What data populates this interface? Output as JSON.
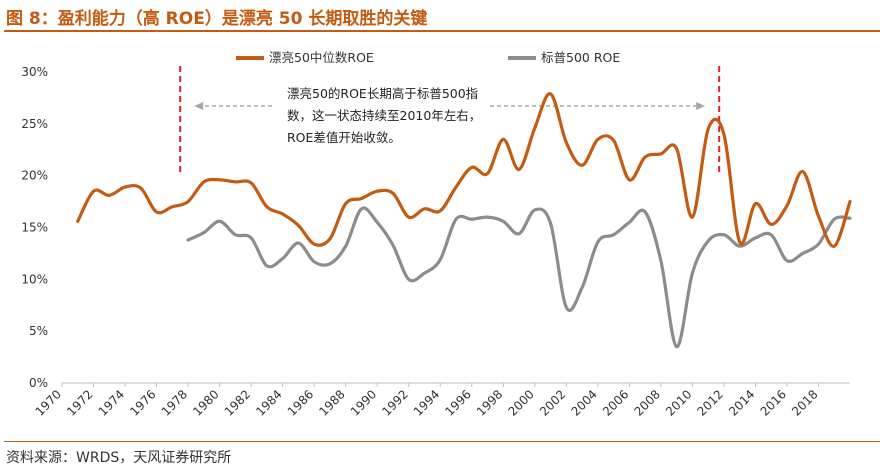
{
  "header": {
    "title": "图 8：盈利能力（高 ROE）是漂亮 50 长期取胜的关键"
  },
  "footer": {
    "source": "资料来源：WRDS，天风证券研究所"
  },
  "colors": {
    "accent": "#c55a11",
    "series_orange": "#c55a11",
    "series_gray": "#8c8c8c",
    "marker_red": "#e02020"
  },
  "chart_data": {
    "type": "line",
    "title": "",
    "xlabel": "",
    "ylabel": "",
    "xlim": [
      1970,
      2020
    ],
    "ylim": [
      0,
      30
    ],
    "y_ticks": [
      "0%",
      "5%",
      "10%",
      "15%",
      "20%",
      "25%",
      "30%"
    ],
    "x_ticks": [
      "1970",
      "1972",
      "1974",
      "1976",
      "1978",
      "1980",
      "1982",
      "1984",
      "1986",
      "1988",
      "1990",
      "1992",
      "1994",
      "1996",
      "1998",
      "2000",
      "2002",
      "2004",
      "2006",
      "2008",
      "2010",
      "2012",
      "2014",
      "2016",
      "2018"
    ],
    "legend": {
      "placement": "top",
      "entries": [
        "漂亮50中位数ROE",
        "标普500 ROE"
      ]
    },
    "series": [
      {
        "name": "漂亮50中位数ROE",
        "color": "#c55a11",
        "x": [
          1971,
          1972,
          1973,
          1974,
          1975,
          1976,
          1977,
          1978,
          1979,
          1980,
          1981,
          1982,
          1983,
          1984,
          1985,
          1986,
          1987,
          1988,
          1989,
          1990,
          1991,
          1992,
          1993,
          1994,
          1995,
          1996,
          1997,
          1998,
          1999,
          2000,
          2001,
          2002,
          2003,
          2004,
          2005,
          2006,
          2007,
          2008,
          2009,
          2010,
          2011,
          2012,
          2013,
          2014,
          2015,
          2016,
          2017,
          2018,
          2019,
          2020
        ],
        "values": [
          15.6,
          18.5,
          18.1,
          18.9,
          18.8,
          16.5,
          17.0,
          17.5,
          19.4,
          19.6,
          19.4,
          19.3,
          17.0,
          16.3,
          15.2,
          13.4,
          13.9,
          17.3,
          17.8,
          18.5,
          18.3,
          16.0,
          16.8,
          16.6,
          18.9,
          20.8,
          20.2,
          23.5,
          20.6,
          24.6,
          27.9,
          23.2,
          21.0,
          23.5,
          23.4,
          19.6,
          21.8,
          22.1,
          22.6,
          16.0,
          24.5,
          24.0,
          13.6,
          17.3,
          15.3,
          17.1,
          20.4,
          16.1,
          13.2,
          17.5
        ]
      },
      {
        "name": "标普500 ROE",
        "color": "#8c8c8c",
        "x": [
          1978,
          1979,
          1980,
          1981,
          1982,
          1983,
          1984,
          1985,
          1986,
          1987,
          1988,
          1989,
          1990,
          1991,
          1992,
          1993,
          1994,
          1995,
          1996,
          1997,
          1998,
          1999,
          2000,
          2001,
          2002,
          2003,
          2004,
          2005,
          2006,
          2007,
          2008,
          2009,
          2010,
          2011,
          2012,
          2013,
          2014,
          2015,
          2016,
          2017,
          2018,
          2019,
          2020
        ],
        "values": [
          13.8,
          14.5,
          15.6,
          14.3,
          14.0,
          11.3,
          12.0,
          13.5,
          11.7,
          11.5,
          13.2,
          16.8,
          15.5,
          13.3,
          10.0,
          10.6,
          11.9,
          15.8,
          15.8,
          16.0,
          15.6,
          14.4,
          16.7,
          15.4,
          7.3,
          9.2,
          13.6,
          14.3,
          15.5,
          16.5,
          11.8,
          3.5,
          10.6,
          13.7,
          14.3,
          13.2,
          14.0,
          14.3,
          11.8,
          12.5,
          13.4,
          15.8,
          15.9
        ]
      }
    ],
    "markers": [
      {
        "x": 1977.5
      },
      {
        "x": 2011.7
      }
    ],
    "annotation": {
      "lines": [
        "漂亮50的ROE长期高于标普500指",
        "数，这一状态持续至2010年左右，",
        "ROE差值开始收敛。"
      ]
    }
  }
}
